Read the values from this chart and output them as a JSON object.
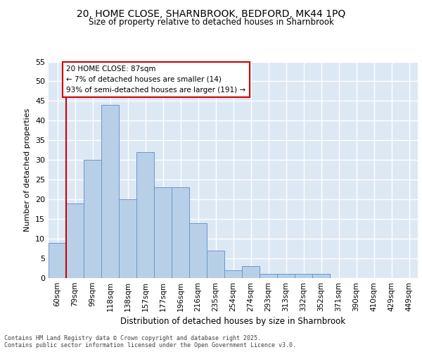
{
  "title_line1": "20, HOME CLOSE, SHARNBROOK, BEDFORD, MK44 1PQ",
  "title_line2": "Size of property relative to detached houses in Sharnbrook",
  "xlabel": "Distribution of detached houses by size in Sharnbrook",
  "ylabel": "Number of detached properties",
  "bar_values": [
    9,
    19,
    30,
    44,
    20,
    32,
    23,
    23,
    14,
    7,
    2,
    3,
    1,
    1,
    1,
    1,
    0,
    0,
    0,
    0,
    0
  ],
  "bin_labels": [
    "60sqm",
    "79sqm",
    "99sqm",
    "118sqm",
    "138sqm",
    "157sqm",
    "177sqm",
    "196sqm",
    "216sqm",
    "235sqm",
    "254sqm",
    "274sqm",
    "293sqm",
    "313sqm",
    "332sqm",
    "352sqm",
    "371sqm",
    "390sqm",
    "410sqm",
    "429sqm",
    "449sqm"
  ],
  "bar_color": "#b8cfe8",
  "bar_edge_color": "#6699cc",
  "background_color": "#dde8f5",
  "grid_color": "#ffffff",
  "vline_color": "#cc0000",
  "annotation_text": "20 HOME CLOSE: 87sqm\n← 7% of detached houses are smaller (14)\n93% of semi-detached houses are larger (191) →",
  "annotation_box_color": "#ffffff",
  "annotation_box_edge": "#cc0000",
  "ylim": [
    0,
    55
  ],
  "yticks": [
    0,
    5,
    10,
    15,
    20,
    25,
    30,
    35,
    40,
    45,
    50,
    55
  ],
  "footer_text": "Contains HM Land Registry data © Crown copyright and database right 2025.\nContains public sector information licensed under the Open Government Licence v3.0.",
  "num_bins": 21
}
